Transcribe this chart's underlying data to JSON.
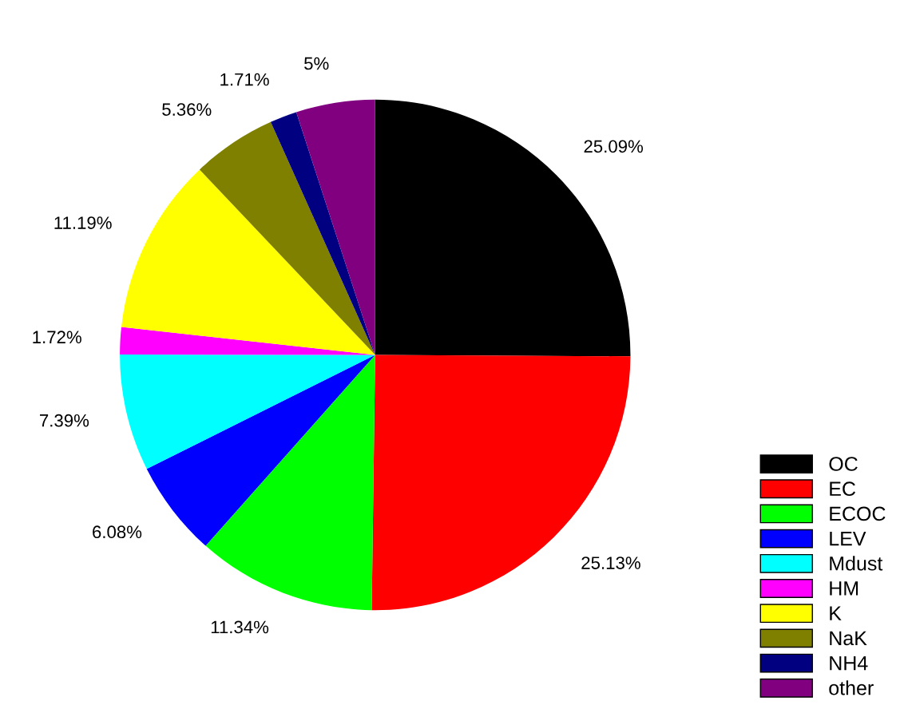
{
  "chart_data": {
    "type": "pie",
    "categories": [
      "OC",
      "EC",
      "ECOC",
      "LEV",
      "Mdust",
      "HM",
      "K",
      "NaK",
      "NH4",
      "other"
    ],
    "values": [
      25.09,
      25.13,
      11.34,
      6.08,
      7.39,
      1.72,
      11.19,
      5.36,
      1.71,
      5
    ],
    "value_labels": [
      "25.09%",
      "25.13%",
      "11.34%",
      "6.08%",
      "7.39%",
      "1.72%",
      "11.19%",
      "5.36%",
      "1.71%",
      "5%"
    ],
    "colors": [
      "#000000",
      "#ff0000",
      "#00ff00",
      "#0000ff",
      "#00ffff",
      "#ff00ff",
      "#ffff00",
      "#808000",
      "#000080",
      "#800080"
    ],
    "legend": "bottom right"
  }
}
